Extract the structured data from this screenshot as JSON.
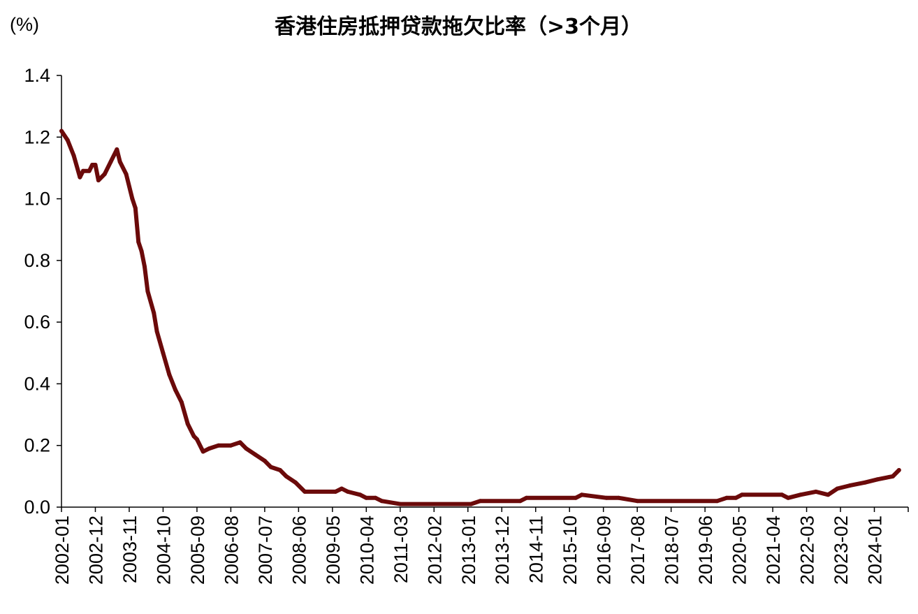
{
  "chart_data": {
    "type": "line",
    "title": "香港住房抵押贷款拖欠比率（>3个月）",
    "unit_label": "(%)",
    "xlabel": "",
    "ylabel": "",
    "ylim": [
      0,
      1.4
    ],
    "yticks": [
      "0.0",
      "0.2",
      "0.4",
      "0.6",
      "0.8",
      "1.0",
      "1.2",
      "1.4"
    ],
    "xticks": [
      "2002-01",
      "2002-12",
      "2003-11",
      "2004-10",
      "2005-09",
      "2006-08",
      "2007-07",
      "2008-06",
      "2009-05",
      "2010-04",
      "2011-03",
      "2012-02",
      "2013-01",
      "2013-12",
      "2014-11",
      "2015-10",
      "2016-09",
      "2017-08",
      "2018-07",
      "2019-06",
      "2020-05",
      "2021-04",
      "2022-03",
      "2023-02",
      "2024-01"
    ],
    "grid": false,
    "legend": "none",
    "colors": {
      "line": "#6b0a0a",
      "axis": "#000000"
    },
    "series": [
      {
        "points": [
          [
            "2002-01",
            1.22
          ],
          [
            "2002-03",
            1.19
          ],
          [
            "2002-05",
            1.14
          ],
          [
            "2002-07",
            1.07
          ],
          [
            "2002-08",
            1.09
          ],
          [
            "2002-10",
            1.09
          ],
          [
            "2002-11",
            1.11
          ],
          [
            "2002-12",
            1.11
          ],
          [
            "2003-01",
            1.06
          ],
          [
            "2003-03",
            1.08
          ],
          [
            "2003-05",
            1.12
          ],
          [
            "2003-07",
            1.16
          ],
          [
            "2003-08",
            1.12
          ],
          [
            "2003-10",
            1.08
          ],
          [
            "2003-12",
            1.0
          ],
          [
            "2004-01",
            0.97
          ],
          [
            "2004-02",
            0.86
          ],
          [
            "2004-03",
            0.83
          ],
          [
            "2004-04",
            0.78
          ],
          [
            "2004-05",
            0.7
          ],
          [
            "2004-07",
            0.63
          ],
          [
            "2004-08",
            0.57
          ],
          [
            "2004-10",
            0.5
          ],
          [
            "2004-12",
            0.43
          ],
          [
            "2005-02",
            0.38
          ],
          [
            "2005-04",
            0.34
          ],
          [
            "2005-06",
            0.27
          ],
          [
            "2005-08",
            0.23
          ],
          [
            "2005-09",
            0.22
          ],
          [
            "2005-11",
            0.18
          ],
          [
            "2006-01",
            0.19
          ],
          [
            "2006-04",
            0.2
          ],
          [
            "2006-08",
            0.2
          ],
          [
            "2006-11",
            0.21
          ],
          [
            "2007-01",
            0.19
          ],
          [
            "2007-04",
            0.17
          ],
          [
            "2007-07",
            0.15
          ],
          [
            "2007-09",
            0.13
          ],
          [
            "2007-12",
            0.12
          ],
          [
            "2008-02",
            0.1
          ],
          [
            "2008-05",
            0.08
          ],
          [
            "2008-08",
            0.05
          ],
          [
            "2009-06",
            0.05
          ],
          [
            "2009-08",
            0.06
          ],
          [
            "2009-10",
            0.05
          ],
          [
            "2010-02",
            0.04
          ],
          [
            "2010-04",
            0.03
          ],
          [
            "2010-07",
            0.03
          ],
          [
            "2010-09",
            0.02
          ],
          [
            "2011-03",
            0.01
          ],
          [
            "2013-02",
            0.01
          ],
          [
            "2013-05",
            0.02
          ],
          [
            "2014-06",
            0.02
          ],
          [
            "2014-08",
            0.03
          ],
          [
            "2015-12",
            0.03
          ],
          [
            "2016-02",
            0.04
          ],
          [
            "2016-10",
            0.03
          ],
          [
            "2017-02",
            0.03
          ],
          [
            "2017-08",
            0.02
          ],
          [
            "2019-10",
            0.02
          ],
          [
            "2020-01",
            0.03
          ],
          [
            "2020-04",
            0.03
          ],
          [
            "2020-06",
            0.04
          ],
          [
            "2021-07",
            0.04
          ],
          [
            "2021-09",
            0.03
          ],
          [
            "2022-01",
            0.04
          ],
          [
            "2022-06",
            0.05
          ],
          [
            "2022-10",
            0.04
          ],
          [
            "2023-01",
            0.06
          ],
          [
            "2023-05",
            0.07
          ],
          [
            "2023-10",
            0.08
          ],
          [
            "2024-02",
            0.09
          ],
          [
            "2024-07",
            0.1
          ],
          [
            "2024-09",
            0.12
          ]
        ]
      }
    ]
  }
}
